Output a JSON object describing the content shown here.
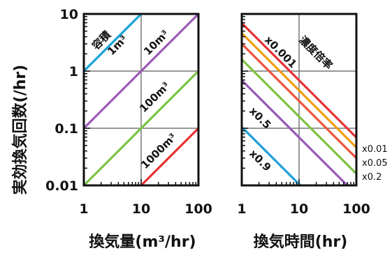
{
  "chart_data": [
    {
      "type": "line",
      "xscale": "log",
      "yscale": "log",
      "xlim": [
        1,
        100
      ],
      "ylim": [
        0.01,
        10
      ],
      "xticks": [
        "1",
        "10",
        "100"
      ],
      "yticks": [
        "0.01",
        "0.1",
        "1",
        "10"
      ],
      "xlabel": "換気量(m³/hr)",
      "ylabel": "実効換気回数(/hr)",
      "grid": true,
      "annotation": "容積",
      "series": [
        {
          "name": "1m³",
          "color": "#1aa0d8",
          "x": [
            1,
            10
          ],
          "y": [
            1,
            10
          ]
        },
        {
          "name": "10m³",
          "color": "#9b59b6",
          "x": [
            1,
            100
          ],
          "y": [
            0.1,
            10
          ]
        },
        {
          "name": "100m³",
          "color": "#7cc242",
          "x": [
            1,
            100
          ],
          "y": [
            0.01,
            1
          ]
        },
        {
          "name": "1000m³",
          "color": "#e8302f",
          "x": [
            10,
            100
          ],
          "y": [
            0.01,
            0.1
          ]
        }
      ]
    },
    {
      "type": "line",
      "xscale": "log",
      "yscale": "log",
      "xlim": [
        1,
        100
      ],
      "ylim": [
        0.01,
        10
      ],
      "xticks": [
        "1",
        "10",
        "100"
      ],
      "xlabel": "換気時間(hr)",
      "grid": true,
      "annotation": "濃度倍率",
      "series": [
        {
          "name": "x0.001",
          "color": "#e8302f",
          "x": [
            1,
            100
          ],
          "y": [
            6.9,
            0.069
          ]
        },
        {
          "name": "x0.01",
          "color": "#f39c12",
          "x": [
            1,
            100
          ],
          "y": [
            4.6,
            0.046
          ]
        },
        {
          "name": "x0.05",
          "color": "#f0543c",
          "x": [
            1,
            100
          ],
          "y": [
            3.0,
            0.03
          ]
        },
        {
          "name": "x0.2",
          "color": "#7cc242",
          "x": [
            1,
            100
          ],
          "y": [
            1.6,
            0.016
          ]
        },
        {
          "name": "x0.5",
          "color": "#9b59b6",
          "x": [
            1,
            70
          ],
          "y": [
            0.69,
            0.0099
          ]
        },
        {
          "name": "x0.9",
          "color": "#1aa0d8",
          "x": [
            1,
            10.5
          ],
          "y": [
            0.105,
            0.01
          ]
        }
      ]
    }
  ]
}
